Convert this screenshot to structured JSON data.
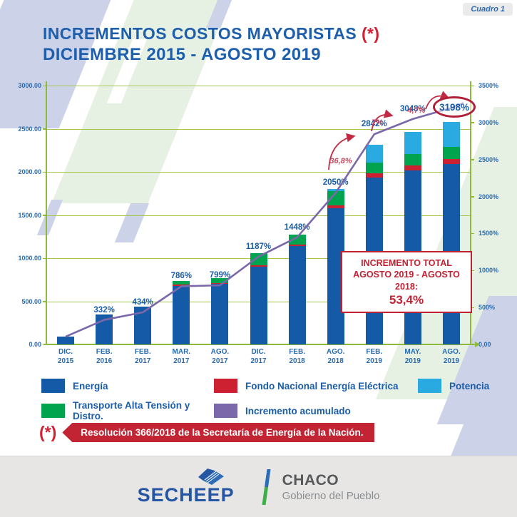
{
  "badge": "Cuadro 1",
  "title": {
    "line1": "INCREMENTOS COSTOS MAYORISTAS",
    "asterisk": "(*)",
    "line2": "DICIEMBRE 2015 - AGOSTO 2019"
  },
  "chart_data": {
    "type": "bar",
    "title": "Incrementos Costos Mayoristas Diciembre 2015 - Agosto 2019",
    "categories": [
      "DIC. 2015",
      "FEB. 2016",
      "FEB. 2017",
      "MAR. 2017",
      "AGO. 2017",
      "DIC. 2017",
      "FEB. 2018",
      "AGO. 2018",
      "FEB. 2019",
      "MAY. 2019",
      "AGO. 2019"
    ],
    "series": [
      {
        "name": "Energía",
        "color": "#155aa7",
        "values": [
          90,
          350,
          440,
          680,
          700,
          900,
          1140,
          1580,
          1930,
          2020,
          2090
        ]
      },
      {
        "name": "Fondo Nacional Energía Eléctrica",
        "color": "#cd2030",
        "values": [
          0,
          0,
          0,
          15,
          10,
          20,
          15,
          30,
          55,
          55,
          60
        ]
      },
      {
        "name": "Transporte Alta Tensión y Distro.",
        "color": "#00a44f",
        "values": [
          0,
          0,
          0,
          40,
          55,
          140,
          115,
          165,
          125,
          130,
          140
        ]
      },
      {
        "name": "Potencia",
        "color": "#29abe2",
        "values": [
          0,
          0,
          0,
          0,
          0,
          0,
          0,
          30,
          200,
          255,
          285
        ]
      }
    ],
    "line": {
      "name": "Incremento acumulado",
      "color": "#7a68aa",
      "values_pct": [
        106,
        332,
        434,
        786,
        799,
        1187,
        1448,
        2050,
        2842,
        3048,
        3198
      ],
      "labels": [
        "",
        "332%",
        "434%",
        "786%",
        "799%",
        "1187%",
        "1448%",
        "2050%",
        "2842%",
        "3048%",
        "3198%"
      ]
    },
    "left_axis": {
      "max": 3000,
      "ticks": [
        "3000.00",
        "2500.00",
        "2000.00",
        "1500.00",
        "1000.00",
        "500.00",
        "0.00"
      ]
    },
    "right_axis": {
      "max": 3500,
      "ticks": [
        "3500%",
        "3000%",
        "2500%",
        "2000%",
        "1500%",
        "1000%",
        "500%",
        "0,00"
      ]
    },
    "annotations": {
      "steps": [
        "36,8%",
        "7%",
        "4,7%"
      ],
      "highlight": "3198%"
    },
    "grid": true,
    "grid_color": "#a4c648",
    "legend_position": "bottom"
  },
  "callout": {
    "line1": "INCREMENTO TOTAL",
    "line2": "AGOSTO 2019 - AGOSTO 2018:",
    "line3": "53,4%"
  },
  "legend": {
    "items": [
      {
        "label": "Energía",
        "color": "#155aa7"
      },
      {
        "label": "Fondo Nacional Energía Eléctrica",
        "color": "#cd2030"
      },
      {
        "label": "Potencia",
        "color": "#29abe2"
      },
      {
        "label": "Transporte Alta Tensión y Distro.",
        "color": "#00a44f"
      },
      {
        "label": "Incremento acumulado",
        "color": "#7a68aa"
      }
    ]
  },
  "footnote": {
    "marker": "(*)",
    "text": "Resolución 366/2018 de la Secretaría de Energía de la Nación."
  },
  "footer": {
    "secheep": "SECHEEP",
    "chaco": "CHACO",
    "chaco_subtitle": "Gobierno del Pueblo"
  }
}
